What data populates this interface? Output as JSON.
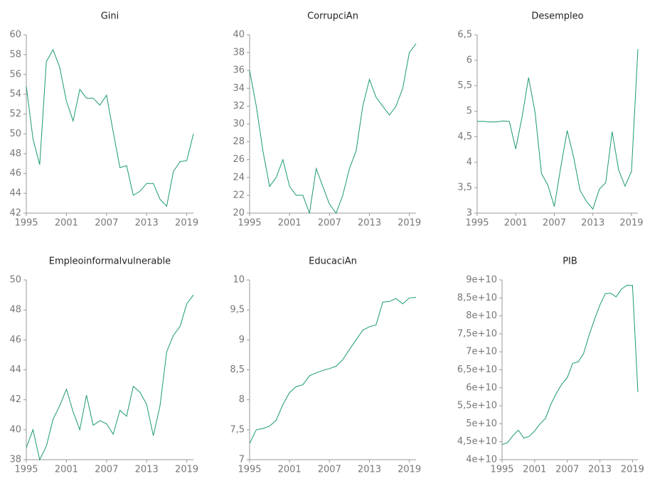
{
  "chart_data": [
    {
      "type": "line",
      "title": "Gini",
      "color": "#1a9a6c",
      "x": [
        1995,
        1996,
        1997,
        1998,
        1999,
        2000,
        2001,
        2002,
        2003,
        2004,
        2005,
        2006,
        2007,
        2008,
        2009,
        2010,
        2011,
        2012,
        2013,
        2014,
        2015,
        2016,
        2017,
        2018,
        2019,
        2020
      ],
      "values": [
        54.8,
        49.5,
        46.9,
        57.3,
        58.5,
        56.7,
        53.3,
        51.3,
        54.5,
        53.6,
        53.6,
        52.9,
        53.9,
        50.2,
        46.6,
        46.8,
        43.8,
        44.2,
        45.0,
        45.0,
        43.4,
        42.7,
        46.2,
        47.2,
        47.3,
        50.0
      ],
      "xlim": [
        1995,
        2020
      ],
      "xticks": [
        1995,
        2001,
        2007,
        2013,
        2019
      ],
      "ylim": [
        42,
        60
      ],
      "yticks": [
        42,
        44,
        46,
        48,
        50,
        52,
        54,
        56,
        58,
        60
      ]
    },
    {
      "type": "line",
      "title": "CorrupciAn",
      "color": "#1a9a6c",
      "x": [
        1995,
        1996,
        1997,
        1998,
        1999,
        2000,
        2001,
        2002,
        2003,
        2004,
        2005,
        2006,
        2007,
        2008,
        2009,
        2010,
        2011,
        2012,
        2013,
        2014,
        2015,
        2016,
        2017,
        2018,
        2019,
        2020
      ],
      "values": [
        36,
        32,
        27,
        23,
        24,
        26,
        23,
        22,
        22,
        20,
        25,
        23,
        21,
        20,
        22,
        25,
        27,
        32,
        35,
        33,
        32,
        31,
        32,
        34,
        38,
        39
      ],
      "xlim": [
        1995,
        2020
      ],
      "xticks": [
        1995,
        2001,
        2007,
        2013,
        2019
      ],
      "ylim": [
        20,
        40
      ],
      "yticks": [
        20,
        22,
        24,
        26,
        28,
        30,
        32,
        34,
        36,
        38,
        40
      ]
    },
    {
      "type": "line",
      "title": "Desempleo",
      "color": "#1a9a6c",
      "x": [
        1995,
        1996,
        1997,
        1998,
        1999,
        2000,
        2001,
        2002,
        2003,
        2004,
        2005,
        2006,
        2007,
        2008,
        2009,
        2010,
        2011,
        2012,
        2013,
        2014,
        2015,
        2016,
        2017,
        2018,
        2019,
        2020
      ],
      "values": [
        4.8,
        4.8,
        4.79,
        4.79,
        4.81,
        4.8,
        4.26,
        4.9,
        5.66,
        4.98,
        3.78,
        3.55,
        3.13,
        3.9,
        4.62,
        4.1,
        3.45,
        3.23,
        3.08,
        3.47,
        3.6,
        4.6,
        3.85,
        3.53,
        3.82,
        6.22
      ],
      "xlim": [
        1995,
        2020
      ],
      "xticks": [
        1995,
        2001,
        2007,
        2013,
        2019
      ],
      "ylim": [
        3,
        6.5
      ],
      "yticks": [
        3,
        {
          "value": 3.5,
          "label": "3,5"
        },
        4,
        {
          "value": 4.5,
          "label": "4,5"
        },
        5,
        {
          "value": 5.5,
          "label": "5,5"
        },
        6,
        {
          "value": 6.5,
          "label": "6,5"
        }
      ]
    },
    {
      "type": "line",
      "title": "Empleoinformalvulnerable",
      "color": "#1a9a6c",
      "x": [
        1995,
        1996,
        1997,
        1998,
        1999,
        2000,
        2001,
        2002,
        2003,
        2004,
        2005,
        2006,
        2007,
        2008,
        2009,
        2010,
        2011,
        2012,
        2013,
        2014,
        2015,
        2016,
        2017,
        2018,
        2019,
        2020
      ],
      "values": [
        38.8,
        40.0,
        38.0,
        38.9,
        40.7,
        41.6,
        42.7,
        41.2,
        40.0,
        42.3,
        40.3,
        40.6,
        40.4,
        39.7,
        41.3,
        40.9,
        42.9,
        42.5,
        41.7,
        39.6,
        41.6,
        45.2,
        46.3,
        46.9,
        48.4,
        49.0
      ],
      "xlim": [
        1995,
        2020
      ],
      "xticks": [
        1995,
        2001,
        2007,
        2013,
        2019
      ],
      "ylim": [
        38,
        50
      ],
      "yticks": [
        38,
        40,
        42,
        44,
        46,
        48,
        50
      ]
    },
    {
      "type": "line",
      "title": "EducaciAn",
      "color": "#1a9a6c",
      "x": [
        1995,
        1996,
        1997,
        1998,
        1999,
        2000,
        2001,
        2002,
        2003,
        2004,
        2005,
        2006,
        2007,
        2008,
        2009,
        2010,
        2011,
        2012,
        2013,
        2014,
        2015,
        2016,
        2017,
        2018,
        2019,
        2020
      ],
      "values": [
        7.27,
        7.5,
        7.52,
        7.56,
        7.66,
        7.92,
        8.12,
        8.22,
        8.25,
        8.4,
        8.45,
        8.49,
        8.52,
        8.56,
        8.67,
        8.84,
        9.0,
        9.16,
        9.22,
        9.25,
        9.63,
        9.64,
        9.69,
        9.6,
        9.7,
        9.71
      ],
      "xlim": [
        1995,
        2020
      ],
      "xticks": [
        1995,
        2001,
        2007,
        2013,
        2019
      ],
      "ylim": [
        7,
        10
      ],
      "yticks": [
        7,
        {
          "value": 7.5,
          "label": "7,5"
        },
        8,
        {
          "value": 8.5,
          "label": "8,5"
        },
        9,
        {
          "value": 9.5,
          "label": "9,5"
        },
        10
      ]
    },
    {
      "type": "line",
      "title": "PIB",
      "color": "#1a9a6c",
      "x": [
        1995,
        1996,
        1997,
        1998,
        1999,
        2000,
        2001,
        2002,
        2003,
        2004,
        2005,
        2006,
        2007,
        2008,
        2009,
        2010,
        2011,
        2012,
        2013,
        2014,
        2015,
        2016,
        2017,
        2018,
        2019,
        2020
      ],
      "values": [
        44200000000,
        44700000000,
        46700000000,
        48200000000,
        46000000000,
        46500000000,
        48000000000,
        50000000000,
        51500000000,
        55500000000,
        58500000000,
        61000000000,
        62800000000,
        66800000000,
        67200000000,
        69500000000,
        74500000000,
        79000000000,
        83000000000,
        86200000000,
        86300000000,
        85300000000,
        87500000000,
        88500000000,
        88500000000,
        58800000000
      ],
      "xlim": [
        1995,
        2020
      ],
      "xticks": [
        1995,
        2001,
        2007,
        2013,
        2019
      ],
      "ylim": [
        40000000000,
        90000000000
      ],
      "yticks": [
        {
          "value": 40000000000,
          "label": "4e+10"
        },
        {
          "value": 45000000000,
          "label": "4,5e+10"
        },
        {
          "value": 50000000000,
          "label": "5e+10"
        },
        {
          "value": 55000000000,
          "label": "5,5e+10"
        },
        {
          "value": 60000000000,
          "label": "6e+10"
        },
        {
          "value": 65000000000,
          "label": "6,5e+10"
        },
        {
          "value": 70000000000,
          "label": "7e+10"
        },
        {
          "value": 75000000000,
          "label": "7,5e+10"
        },
        {
          "value": 80000000000,
          "label": "8e+10"
        },
        {
          "value": 85000000000,
          "label": "8,5e+10"
        },
        {
          "value": 90000000000,
          "label": "9e+10"
        }
      ]
    }
  ]
}
